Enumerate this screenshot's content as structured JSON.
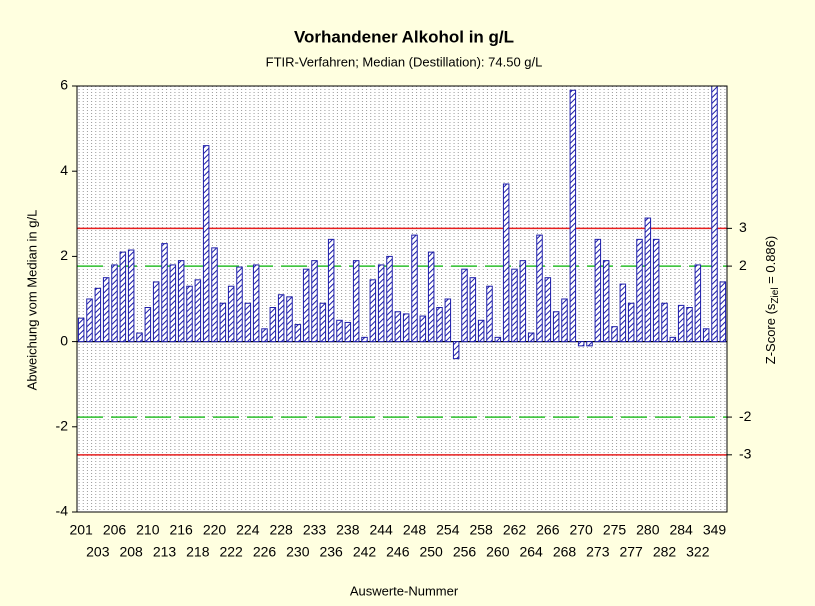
{
  "chart_data": {
    "type": "bar",
    "title": "Vorhandener Alkohol in g/L",
    "subtitle": "FTIR-Verfahren; Median (Destillation): 74.50 g/L",
    "x_label": "Auswerte-Nummer",
    "y_label": "Abweichung vom Median in g/L",
    "y2_label": {
      "prefix": "Z-Score (s",
      "subscript": "Ziel",
      "suffix": " = 0.886)"
    },
    "categories": [
      "201",
      null,
      "203",
      null,
      "206",
      null,
      "208",
      null,
      "210",
      null,
      "213",
      null,
      "216",
      null,
      "218",
      null,
      "220",
      null,
      "222",
      null,
      "224",
      null,
      "226",
      null,
      "228",
      null,
      "230",
      null,
      "233",
      null,
      "236",
      null,
      "238",
      null,
      "242",
      null,
      "244",
      null,
      "246",
      null,
      "248",
      null,
      "250",
      null,
      "254",
      null,
      "256",
      null,
      "258",
      null,
      "260",
      null,
      "262",
      null,
      "264",
      null,
      "266",
      null,
      "268",
      null,
      "270",
      null,
      "273",
      null,
      "275",
      null,
      "277",
      null,
      "280",
      null,
      "282",
      null,
      "284",
      null,
      "322",
      null,
      "349",
      null
    ],
    "values": [
      0.55,
      1.0,
      1.25,
      1.5,
      1.8,
      2.1,
      2.15,
      0.2,
      0.8,
      1.4,
      2.3,
      1.8,
      1.9,
      1.3,
      1.45,
      4.6,
      2.2,
      0.9,
      1.3,
      1.75,
      0.9,
      1.8,
      0.3,
      0.8,
      1.1,
      1.05,
      0.4,
      1.7,
      1.9,
      0.9,
      2.4,
      0.5,
      0.45,
      1.9,
      0.1,
      1.45,
      1.8,
      2.0,
      0.7,
      0.65,
      2.5,
      0.6,
      2.1,
      0.8,
      1.0,
      -0.4,
      1.7,
      1.5,
      0.5,
      1.3,
      0.1,
      3.7,
      1.7,
      1.9,
      0.2,
      2.5,
      1.5,
      0.7,
      1.0,
      5.9,
      -0.1,
      -0.1,
      2.4,
      1.9,
      0.35,
      1.35,
      0.9,
      2.4,
      2.9,
      2.4,
      0.9,
      0.1,
      0.85,
      0.8,
      1.8,
      0.3,
      6.0,
      1.4
    ],
    "color": "#1c1ca8",
    "ylim": [
      -4,
      6
    ],
    "yticks": [
      -4,
      -2,
      0,
      2,
      4,
      6
    ],
    "y2lim": [
      -4.515,
      6.772
    ],
    "y2ticks": [
      -3,
      -2,
      2,
      3
    ],
    "y2_line_colors": [
      "#e82020",
      "#2cc02c",
      "#2cc02c",
      "#e82020"
    ],
    "y2_line_dashed": [
      false,
      true,
      true,
      false
    ],
    "grid": true,
    "background": "#ffffe0"
  }
}
